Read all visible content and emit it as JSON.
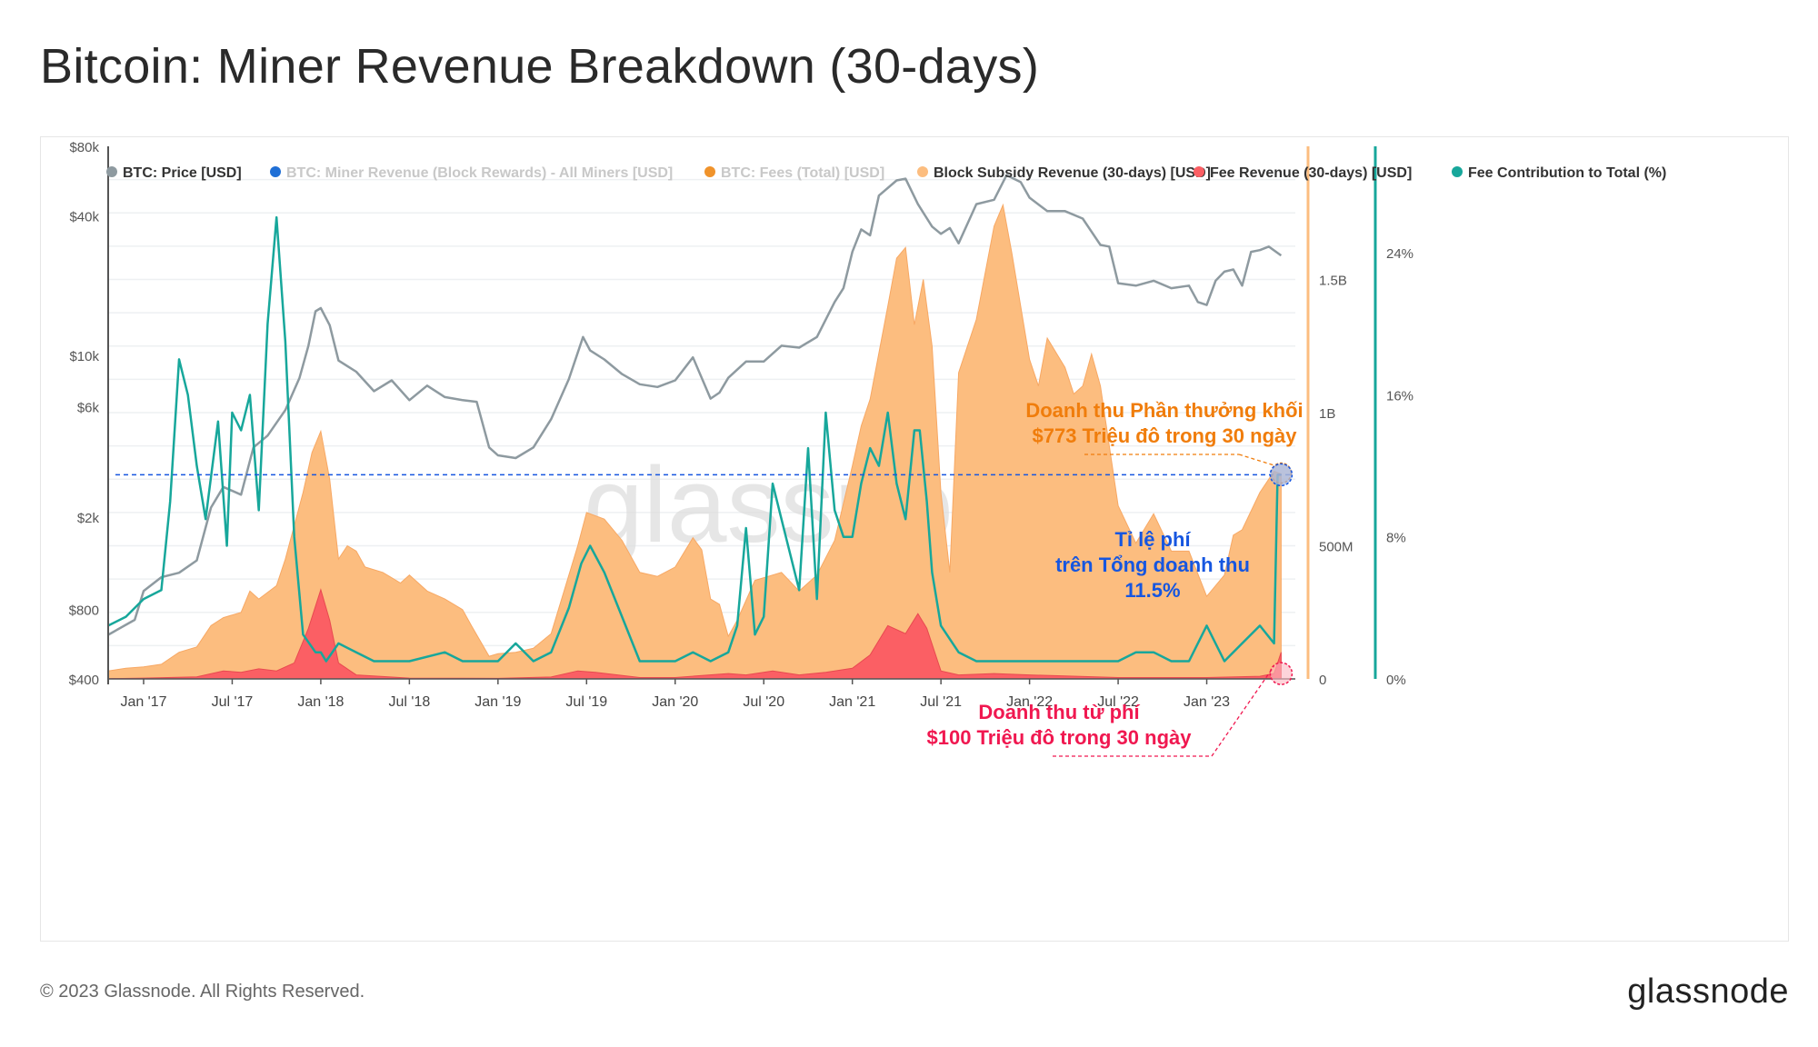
{
  "title": "Bitcoin: Miner Revenue Breakdown (30-days)",
  "footer": {
    "copyright": "© 2023 Glassnode. All Rights Reserved.",
    "brand": "glassnode"
  },
  "watermark": "glassnode",
  "colors": {
    "price": "#8e9aa0",
    "miner_revenue": "#1f6fd6",
    "fees_total": "#f0932b",
    "subsidy": "#fcbd7f",
    "fee_revenue": "#fb5f64",
    "contribution": "#17a79b",
    "annotation_orange": "#f07d0c",
    "annotation_blue": "#1656e0",
    "annotation_red": "#f01850"
  },
  "chart_data": {
    "type": "area",
    "legend": [
      {
        "label": "BTC: Price [USD]",
        "color": "#8e9aa0",
        "active": true
      },
      {
        "label": "BTC: Miner Revenue (Block Rewards) - All Miners [USD]",
        "color": "#1f6fd6",
        "active": false
      },
      {
        "label": "BTC: Fees (Total) [USD]",
        "color": "#f0932b",
        "active": false
      },
      {
        "label": "Block Subsidy Revenue (30-days) [USD]",
        "color": "#fcbd7f",
        "active": true
      },
      {
        "label": "Fee Revenue (30-days) [USD]",
        "color": "#fb5f64",
        "active": true
      },
      {
        "label": "Fee Contribution to Total (%)",
        "color": "#17a79b",
        "active": true
      }
    ],
    "x_ticks": [
      "Jan '17",
      "Jul '17",
      "Jan '18",
      "Jul '18",
      "Jan '19",
      "Jul '19",
      "Jan '20",
      "Jul '20",
      "Jan '21",
      "Jul '21",
      "Jan '22",
      "Jul '22",
      "Jan '23"
    ],
    "x_range": [
      2016.8,
      2023.5
    ],
    "y_left": {
      "scale": "log",
      "range": [
        400,
        80000
      ],
      "ticks": [
        "$400",
        "$800",
        "$2k",
        "$6k",
        "$10k",
        "$40k",
        "$80k"
      ],
      "tick_values": [
        400,
        800,
        2000,
        6000,
        10000,
        40000,
        80000
      ]
    },
    "y_mid": {
      "scale": "linear",
      "range": [
        0,
        2000000000
      ],
      "ticks": [
        "0",
        "500M",
        "1B",
        "1.5B"
      ],
      "tick_values": [
        0,
        500000000,
        1000000000,
        1500000000
      ]
    },
    "y_right": {
      "scale": "linear",
      "range": [
        0,
        30
      ],
      "ticks": [
        "0%",
        "8%",
        "16%",
        "24%"
      ],
      "tick_values": [
        0,
        8,
        16,
        24
      ]
    },
    "series": [
      {
        "name": "BTC: Price [USD]",
        "x": [
          2016.8,
          2016.95,
          2017.0,
          2017.1,
          2017.2,
          2017.3,
          2017.38,
          2017.45,
          2017.55,
          2017.62,
          2017.7,
          2017.8,
          2017.88,
          2017.93,
          2017.97,
          2018.0,
          2018.05,
          2018.1,
          2018.2,
          2018.3,
          2018.4,
          2018.5,
          2018.6,
          2018.7,
          2018.8,
          2018.88,
          2018.95,
          2019.0,
          2019.1,
          2019.2,
          2019.3,
          2019.4,
          2019.48,
          2019.52,
          2019.6,
          2019.7,
          2019.8,
          2019.9,
          2020.0,
          2020.1,
          2020.2,
          2020.25,
          2020.3,
          2020.4,
          2020.5,
          2020.6,
          2020.7,
          2020.8,
          2020.9,
          2020.95,
          2021.0,
          2021.05,
          2021.1,
          2021.15,
          2021.25,
          2021.3,
          2021.37,
          2021.45,
          2021.5,
          2021.55,
          2021.6,
          2021.7,
          2021.8,
          2021.87,
          2021.95,
          2022.0,
          2022.1,
          2022.2,
          2022.3,
          2022.4,
          2022.45,
          2022.5,
          2022.6,
          2022.7,
          2022.8,
          2022.9,
          2022.95,
          2023.0,
          2023.05,
          2023.1,
          2023.15,
          2023.2,
          2023.25,
          2023.3,
          2023.35,
          2023.42
        ],
        "values": [
          620,
          720,
          960,
          1100,
          1150,
          1300,
          2200,
          2700,
          2500,
          4000,
          4500,
          5800,
          8000,
          11000,
          15500,
          16000,
          13500,
          9500,
          8500,
          7000,
          7800,
          6400,
          7400,
          6600,
          6400,
          6300,
          4000,
          3700,
          3600,
          4000,
          5300,
          7900,
          12000,
          10500,
          9600,
          8300,
          7500,
          7300,
          7800,
          9800,
          6500,
          6900,
          8000,
          9400,
          9400,
          11000,
          10800,
          12000,
          17000,
          19500,
          28000,
          35000,
          33000,
          49000,
          57000,
          58000,
          45000,
          36000,
          33500,
          35500,
          30500,
          45000,
          47000,
          60000,
          56000,
          48000,
          42000,
          42000,
          39000,
          30000,
          29500,
          20500,
          20000,
          21000,
          19500,
          20000,
          17000,
          16500,
          21000,
          23000,
          23500,
          20000,
          28000,
          28500,
          29500,
          27000
        ]
      },
      {
        "name": "Block Subsidy Revenue (30-days) [USD]",
        "x": [
          2016.8,
          2016.9,
          2017.0,
          2017.1,
          2017.2,
          2017.3,
          2017.38,
          2017.45,
          2017.55,
          2017.6,
          2017.65,
          2017.75,
          2017.8,
          2017.9,
          2017.95,
          2018.0,
          2018.05,
          2018.1,
          2018.15,
          2018.2,
          2018.25,
          2018.35,
          2018.45,
          2018.5,
          2018.6,
          2018.7,
          2018.8,
          2018.85,
          2018.95,
          2019.0,
          2019.1,
          2019.2,
          2019.3,
          2019.45,
          2019.5,
          2019.6,
          2019.7,
          2019.8,
          2019.9,
          2020.0,
          2020.1,
          2020.15,
          2020.2,
          2020.25,
          2020.3,
          2020.35,
          2020.45,
          2020.6,
          2020.7,
          2020.8,
          2020.9,
          2021.0,
          2021.05,
          2021.1,
          2021.2,
          2021.25,
          2021.3,
          2021.35,
          2021.4,
          2021.45,
          2021.5,
          2021.55,
          2021.6,
          2021.7,
          2021.8,
          2021.85,
          2021.9,
          2022.0,
          2022.05,
          2022.1,
          2022.2,
          2022.25,
          2022.3,
          2022.35,
          2022.4,
          2022.5,
          2022.6,
          2022.7,
          2022.8,
          2022.9,
          2023.0,
          2023.1,
          2023.15,
          2023.2,
          2023.3,
          2023.38,
          2023.42
        ],
        "values": [
          30000000,
          40000000,
          45000000,
          55000000,
          100000000,
          120000000,
          200000000,
          230000000,
          250000000,
          330000000,
          300000000,
          350000000,
          450000000,
          700000000,
          850000000,
          930000000,
          750000000,
          450000000,
          500000000,
          480000000,
          420000000,
          400000000,
          360000000,
          390000000,
          330000000,
          300000000,
          260000000,
          200000000,
          85000000,
          95000000,
          100000000,
          115000000,
          170000000,
          500000000,
          625000000,
          600000000,
          520000000,
          400000000,
          385000000,
          420000000,
          530000000,
          485000000,
          300000000,
          280000000,
          160000000,
          220000000,
          370000000,
          400000000,
          330000000,
          390000000,
          520000000,
          800000000,
          950000000,
          1050000000,
          1400000000,
          1580000000,
          1620000000,
          1330000000,
          1500000000,
          1250000000,
          700000000,
          400000000,
          1150000000,
          1350000000,
          1700000000,
          1780000000,
          1600000000,
          1200000000,
          1100000000,
          1280000000,
          1170000000,
          1070000000,
          1100000000,
          1220000000,
          1100000000,
          650000000,
          510000000,
          620000000,
          480000000,
          480000000,
          310000000,
          390000000,
          540000000,
          560000000,
          700000000,
          780000000,
          770000000
        ]
      },
      {
        "name": "Fee Revenue (30-days) [USD]",
        "x": [
          2016.8,
          2017.0,
          2017.3,
          2017.45,
          2017.55,
          2017.65,
          2017.75,
          2017.85,
          2017.93,
          2018.0,
          2018.05,
          2018.1,
          2018.2,
          2018.5,
          2019.0,
          2019.3,
          2019.45,
          2019.55,
          2019.8,
          2020.0,
          2020.3,
          2020.4,
          2020.55,
          2020.7,
          2020.85,
          2021.0,
          2021.1,
          2021.2,
          2021.3,
          2021.37,
          2021.42,
          2021.5,
          2021.6,
          2021.8,
          2022.0,
          2022.5,
          2023.0,
          2023.3,
          2023.38,
          2023.42
        ],
        "values": [
          1000000,
          3000000,
          8000000,
          30000000,
          25000000,
          38000000,
          30000000,
          60000000,
          190000000,
          335000000,
          220000000,
          60000000,
          15000000,
          3000000,
          2000000,
          7000000,
          30000000,
          25000000,
          5000000,
          5000000,
          20000000,
          15000000,
          30000000,
          15000000,
          25000000,
          40000000,
          90000000,
          200000000,
          170000000,
          245000000,
          190000000,
          30000000,
          15000000,
          20000000,
          15000000,
          5000000,
          5000000,
          10000000,
          20000000,
          100000000
        ]
      },
      {
        "name": "Fee Contribution to Total (%)",
        "x": [
          2016.8,
          2016.9,
          2017.0,
          2017.1,
          2017.15,
          2017.2,
          2017.25,
          2017.3,
          2017.35,
          2017.42,
          2017.47,
          2017.5,
          2017.55,
          2017.6,
          2017.65,
          2017.7,
          2017.75,
          2017.8,
          2017.85,
          2017.9,
          2017.97,
          2018.0,
          2018.03,
          2018.1,
          2018.2,
          2018.3,
          2018.5,
          2018.7,
          2018.8,
          2018.9,
          2019.0,
          2019.1,
          2019.2,
          2019.3,
          2019.4,
          2019.47,
          2019.52,
          2019.6,
          2019.7,
          2019.8,
          2020.0,
          2020.1,
          2020.2,
          2020.3,
          2020.35,
          2020.4,
          2020.45,
          2020.5,
          2020.55,
          2020.6,
          2020.7,
          2020.75,
          2020.8,
          2020.85,
          2020.9,
          2020.95,
          2021.0,
          2021.05,
          2021.1,
          2021.15,
          2021.2,
          2021.25,
          2021.3,
          2021.35,
          2021.38,
          2021.42,
          2021.45,
          2021.5,
          2021.6,
          2021.7,
          2021.8,
          2022.0,
          2022.2,
          2022.4,
          2022.5,
          2022.6,
          2022.7,
          2022.8,
          2022.9,
          2023.0,
          2023.1,
          2023.2,
          2023.3,
          2023.38,
          2023.4,
          2023.42
        ],
        "values": [
          3,
          3.5,
          4.5,
          5,
          10,
          18,
          16,
          12,
          9,
          14.5,
          7.5,
          15,
          14,
          16,
          9.5,
          20,
          26,
          19,
          8,
          2.5,
          1.5,
          1.5,
          1,
          2,
          1.5,
          1,
          1,
          1.5,
          1,
          1,
          1,
          2,
          1,
          1.5,
          4,
          6.5,
          7.5,
          6,
          3.5,
          1,
          1,
          1.5,
          1,
          1.5,
          3,
          8.5,
          2.5,
          3.5,
          11,
          9,
          5,
          13,
          4.5,
          15,
          9.5,
          8,
          8,
          11,
          13,
          12,
          15,
          11,
          9,
          14,
          14,
          10,
          6,
          3,
          1.5,
          1,
          1,
          1,
          1,
          1,
          1,
          1.5,
          1.5,
          1,
          1,
          3,
          1,
          2,
          3,
          2,
          11.5,
          11.5
        ]
      }
    ],
    "annotations": [
      {
        "lines": [
          "Doanh thu Phần thưởng khối",
          "$773 Triệu đô trong 30 ngày"
        ],
        "color": "#f07d0c"
      },
      {
        "lines": [
          "Tỉ lệ phí",
          "trên Tổng doanh thu",
          "11.5%"
        ],
        "color": "#1656e0"
      },
      {
        "lines": [
          "Doanh thu từ phí",
          "$100 Triệu đô trong 30 ngày"
        ],
        "color": "#f01850"
      }
    ]
  }
}
